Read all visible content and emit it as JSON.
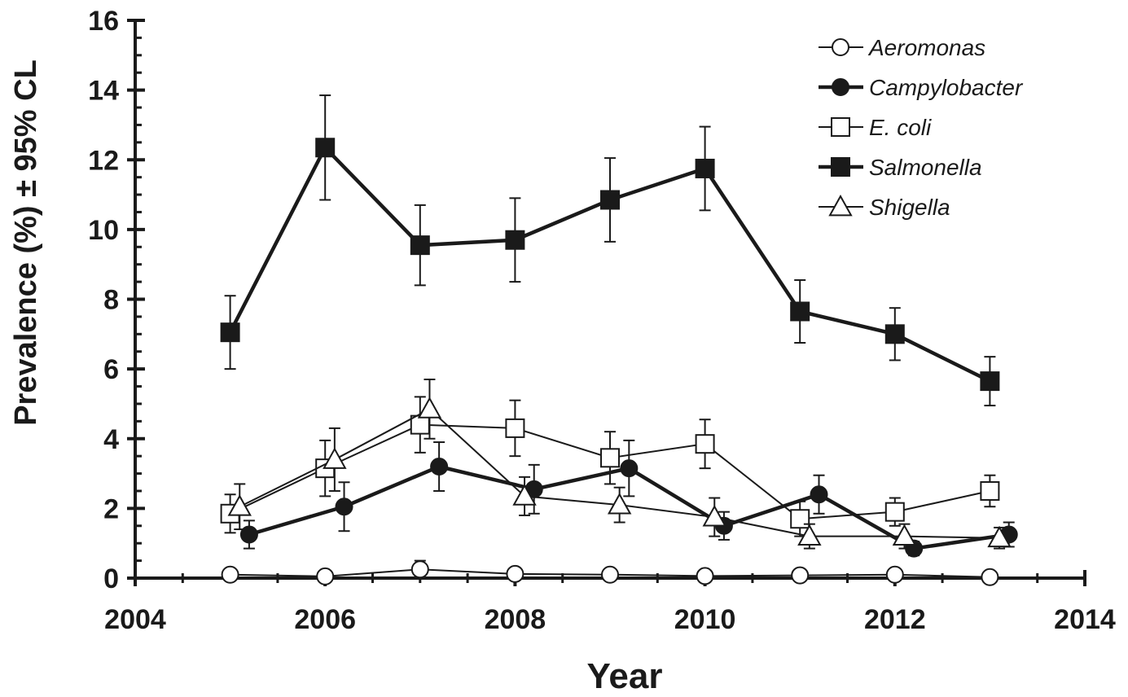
{
  "chart_data": {
    "type": "line",
    "xlabel": "Year",
    "ylabel": "Prevalence (%) ±  95% CL",
    "xlim": [
      2004,
      2014
    ],
    "ylim": [
      0,
      16
    ],
    "x_ticks": [
      "2004",
      "2006",
      "2008",
      "2010",
      "2012",
      "2014"
    ],
    "y_ticks": [
      "0",
      "2",
      "4",
      "6",
      "8",
      "10",
      "12",
      "14",
      "16"
    ],
    "grid": false,
    "legend_position": "top-right",
    "series": [
      {
        "name": "Aeromonas",
        "marker": "open-circle",
        "color": "#1a1a1a",
        "x": [
          2005,
          2006,
          2007,
          2008,
          2009,
          2010,
          2011,
          2012,
          2013
        ],
        "values": [
          0.1,
          0.05,
          0.25,
          0.12,
          0.1,
          0.06,
          0.08,
          0.1,
          0.03
        ],
        "err": [
          0.08,
          0.05,
          0.25,
          0.1,
          0.08,
          0.05,
          0.06,
          0.08,
          0.03
        ]
      },
      {
        "name": "Campylobacter",
        "marker": "filled-circle",
        "color": "#1a1a1a",
        "x": [
          2005.2,
          2006.2,
          2007.2,
          2008.2,
          2009.2,
          2010.2,
          2011.2,
          2012.2,
          2013.2
        ],
        "values": [
          1.25,
          2.05,
          3.2,
          2.55,
          3.15,
          1.5,
          2.4,
          0.85,
          1.25
        ],
        "err": [
          0.4,
          0.7,
          0.7,
          0.7,
          0.8,
          0.4,
          0.55,
          0.2,
          0.35
        ]
      },
      {
        "name": "E. coli",
        "marker": "open-square",
        "color": "#1a1a1a",
        "x": [
          2005,
          2006,
          2007,
          2008,
          2009,
          2010,
          2011,
          2012,
          2013
        ],
        "values": [
          1.85,
          3.15,
          4.4,
          4.3,
          3.45,
          3.85,
          1.7,
          1.9,
          2.5
        ],
        "err": [
          0.55,
          0.8,
          0.8,
          0.8,
          0.75,
          0.7,
          0.5,
          0.4,
          0.45
        ]
      },
      {
        "name": "Salmonella",
        "marker": "filled-square",
        "color": "#1a1a1a",
        "x": [
          2005,
          2006,
          2007,
          2008,
          2009,
          2010,
          2011,
          2012,
          2013
        ],
        "values": [
          7.05,
          12.35,
          9.55,
          9.7,
          10.85,
          11.75,
          7.65,
          7.0,
          5.65
        ],
        "err": [
          1.05,
          1.5,
          1.15,
          1.2,
          1.2,
          1.2,
          0.9,
          0.75,
          0.7
        ]
      },
      {
        "name": "Shigella",
        "marker": "open-triangle",
        "color": "#1a1a1a",
        "x": [
          2005.1,
          2006.1,
          2007.1,
          2008.1,
          2009.1,
          2010.1,
          2011.1,
          2012.1,
          2013.1
        ],
        "values": [
          2.05,
          3.4,
          4.85,
          2.35,
          2.1,
          1.75,
          1.2,
          1.2,
          1.15
        ],
        "err": [
          0.65,
          0.9,
          0.85,
          0.55,
          0.5,
          0.55,
          0.35,
          0.35,
          0.3
        ]
      }
    ]
  }
}
